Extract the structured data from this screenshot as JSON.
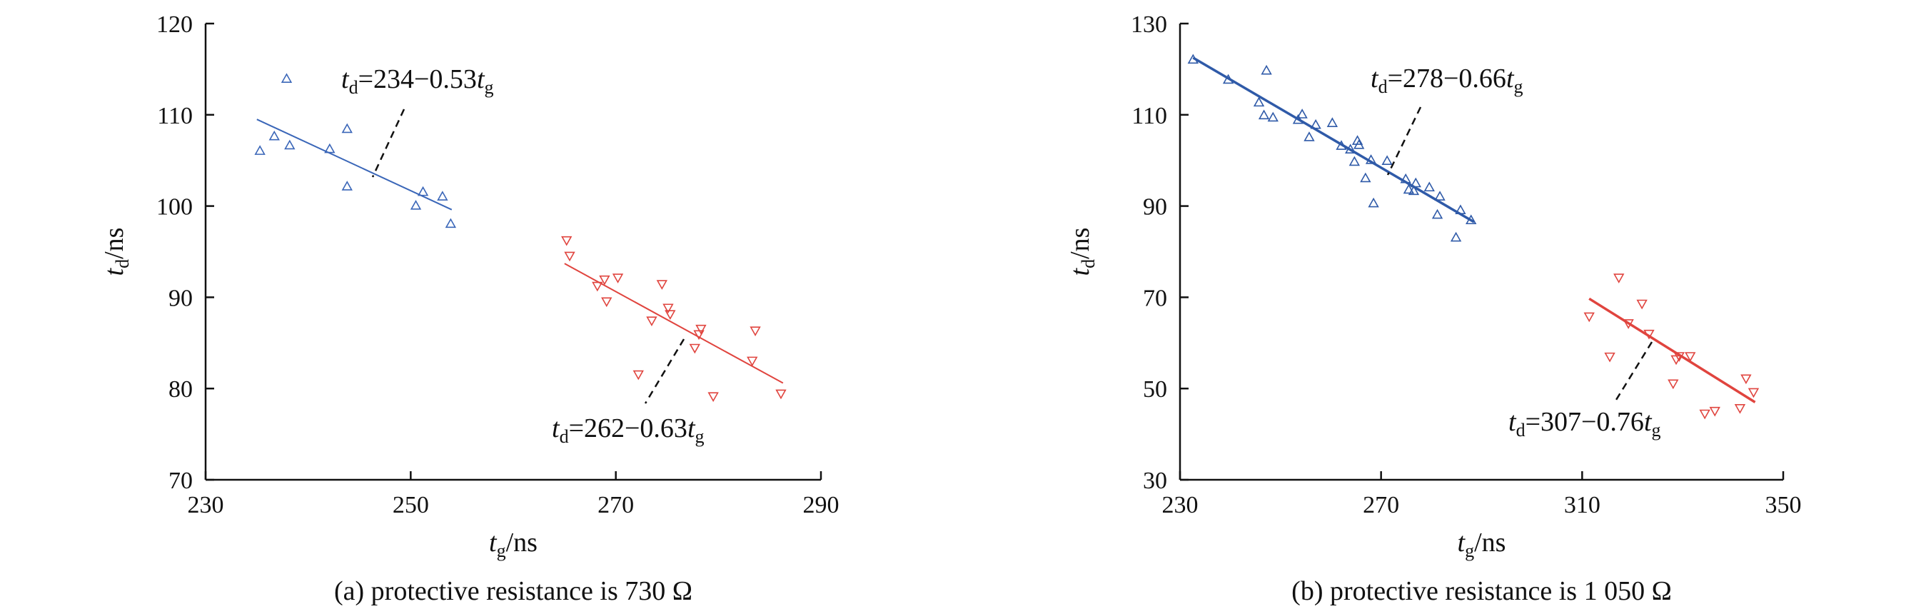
{
  "chart_data": [
    {
      "type": "scatter",
      "caption": "(a) protective resistance is 730 Ω",
      "xlabel": {
        "var": "t",
        "sub": "g",
        "unit": "/ns"
      },
      "ylabel": {
        "var": "t",
        "sub": "d",
        "unit": "/ns"
      },
      "xlim": [
        230,
        290
      ],
      "ylim": [
        70,
        120
      ],
      "xticks": [
        230,
        250,
        270,
        290
      ],
      "yticks": [
        70,
        80,
        90,
        100,
        110,
        120
      ],
      "series": [
        {
          "marker": "triangle-up",
          "color": "#3a66b8",
          "points": [
            [
              235.3,
              106.0
            ],
            [
              236.7,
              107.6
            ],
            [
              237.9,
              113.9
            ],
            [
              238.2,
              106.6
            ],
            [
              242.1,
              106.2
            ],
            [
              243.8,
              102.1
            ],
            [
              243.8,
              108.4
            ],
            [
              250.5,
              100.0
            ],
            [
              251.2,
              101.5
            ],
            [
              253.1,
              101.0
            ],
            [
              253.9,
              98.0
            ]
          ],
          "fit": {
            "x": [
              235.0,
              254.0
            ],
            "y": [
              109.5,
              99.6
            ]
          },
          "equation": {
            "lhs": "t",
            "lhs_sub": "d",
            "text": "=234−0.53",
            "rhs": "t",
            "rhs_sub": "g"
          }
        },
        {
          "marker": "triangle-down",
          "color": "#e0443e",
          "points": [
            [
              265.2,
              96.3
            ],
            [
              265.5,
              94.6
            ],
            [
              268.2,
              91.3
            ],
            [
              268.9,
              92.0
            ],
            [
              269.1,
              89.6
            ],
            [
              270.2,
              92.2
            ],
            [
              272.2,
              81.6
            ],
            [
              273.5,
              87.5
            ],
            [
              274.5,
              91.5
            ],
            [
              275.1,
              88.9
            ],
            [
              275.3,
              88.2
            ],
            [
              277.7,
              84.5
            ],
            [
              278.1,
              86.0
            ],
            [
              278.3,
              86.6
            ],
            [
              279.5,
              79.2
            ],
            [
              283.3,
              83.1
            ],
            [
              283.6,
              86.4
            ],
            [
              286.1,
              79.5
            ]
          ],
          "fit": {
            "x": [
              265.0,
              286.3
            ],
            "y": [
              93.7,
              80.6
            ]
          },
          "equation": {
            "lhs": "t",
            "lhs_sub": "d",
            "text": "=262−0.63",
            "rhs": "t",
            "rhs_sub": "g"
          }
        }
      ]
    },
    {
      "type": "scatter",
      "caption": "(b) protective resistance is 1 050 Ω",
      "xlabel": {
        "var": "t",
        "sub": "g",
        "unit": "/ns"
      },
      "ylabel": {
        "var": "t",
        "sub": "d",
        "unit": "/ns"
      },
      "xlim": [
        230,
        350
      ],
      "ylim": [
        30,
        130
      ],
      "xticks": [
        230,
        270,
        310,
        350
      ],
      "yticks": [
        30,
        50,
        70,
        90,
        110,
        130
      ],
      "series": [
        {
          "marker": "triangle-up",
          "color": "#2f5aa8",
          "points": [
            [
              232.6,
              122.0
            ],
            [
              239.6,
              117.6
            ],
            [
              245.7,
              112.6
            ],
            [
              246.7,
              109.8
            ],
            [
              247.2,
              119.6
            ],
            [
              248.5,
              109.3
            ],
            [
              253.5,
              108.8
            ],
            [
              254.3,
              110.0
            ],
            [
              255.7,
              105.0
            ],
            [
              257.0,
              107.7
            ],
            [
              260.3,
              108.1
            ],
            [
              262.1,
              103.1
            ],
            [
              263.9,
              102.3
            ],
            [
              264.7,
              99.6
            ],
            [
              265.3,
              104.2
            ],
            [
              265.6,
              103.3
            ],
            [
              266.9,
              96.0
            ],
            [
              268.0,
              100.0
            ],
            [
              268.5,
              90.5
            ],
            [
              271.2,
              99.8
            ],
            [
              274.9,
              95.8
            ],
            [
              275.5,
              93.5
            ],
            [
              276.5,
              93.2
            ],
            [
              276.9,
              94.9
            ],
            [
              279.6,
              94.0
            ],
            [
              281.2,
              88.0
            ],
            [
              281.7,
              92.0
            ],
            [
              284.9,
              83.0
            ],
            [
              285.8,
              89.0
            ],
            [
              287.9,
              86.8
            ]
          ],
          "fit": {
            "x": [
              232.6,
              288.5
            ],
            "y": [
              122.5,
              86.5
            ]
          },
          "equation": {
            "lhs": "t",
            "lhs_sub": "d",
            "text": "=278−0.66",
            "rhs": "t",
            "rhs_sub": "g"
          }
        },
        {
          "marker": "triangle-down",
          "color": "#e0443e",
          "points": [
            [
              311.4,
              65.9
            ],
            [
              315.5,
              57.1
            ],
            [
              317.3,
              74.4
            ],
            [
              319.2,
              64.4
            ],
            [
              321.9,
              68.7
            ],
            [
              323.3,
              62.1
            ],
            [
              328.1,
              51.2
            ],
            [
              328.7,
              56.5
            ],
            [
              329.3,
              57.2
            ],
            [
              331.5,
              57.2
            ],
            [
              334.4,
              44.6
            ],
            [
              336.4,
              45.2
            ],
            [
              341.4,
              45.8
            ],
            [
              342.6,
              52.3
            ],
            [
              344.1,
              49.3
            ]
          ],
          "fit": {
            "x": [
              311.4,
              344.4
            ],
            "y": [
              69.7,
              47.0
            ]
          },
          "equation": {
            "lhs": "t",
            "lhs_sub": "d",
            "text": "=307−0.76",
            "rhs": "t",
            "rhs_sub": "g"
          }
        }
      ]
    }
  ]
}
